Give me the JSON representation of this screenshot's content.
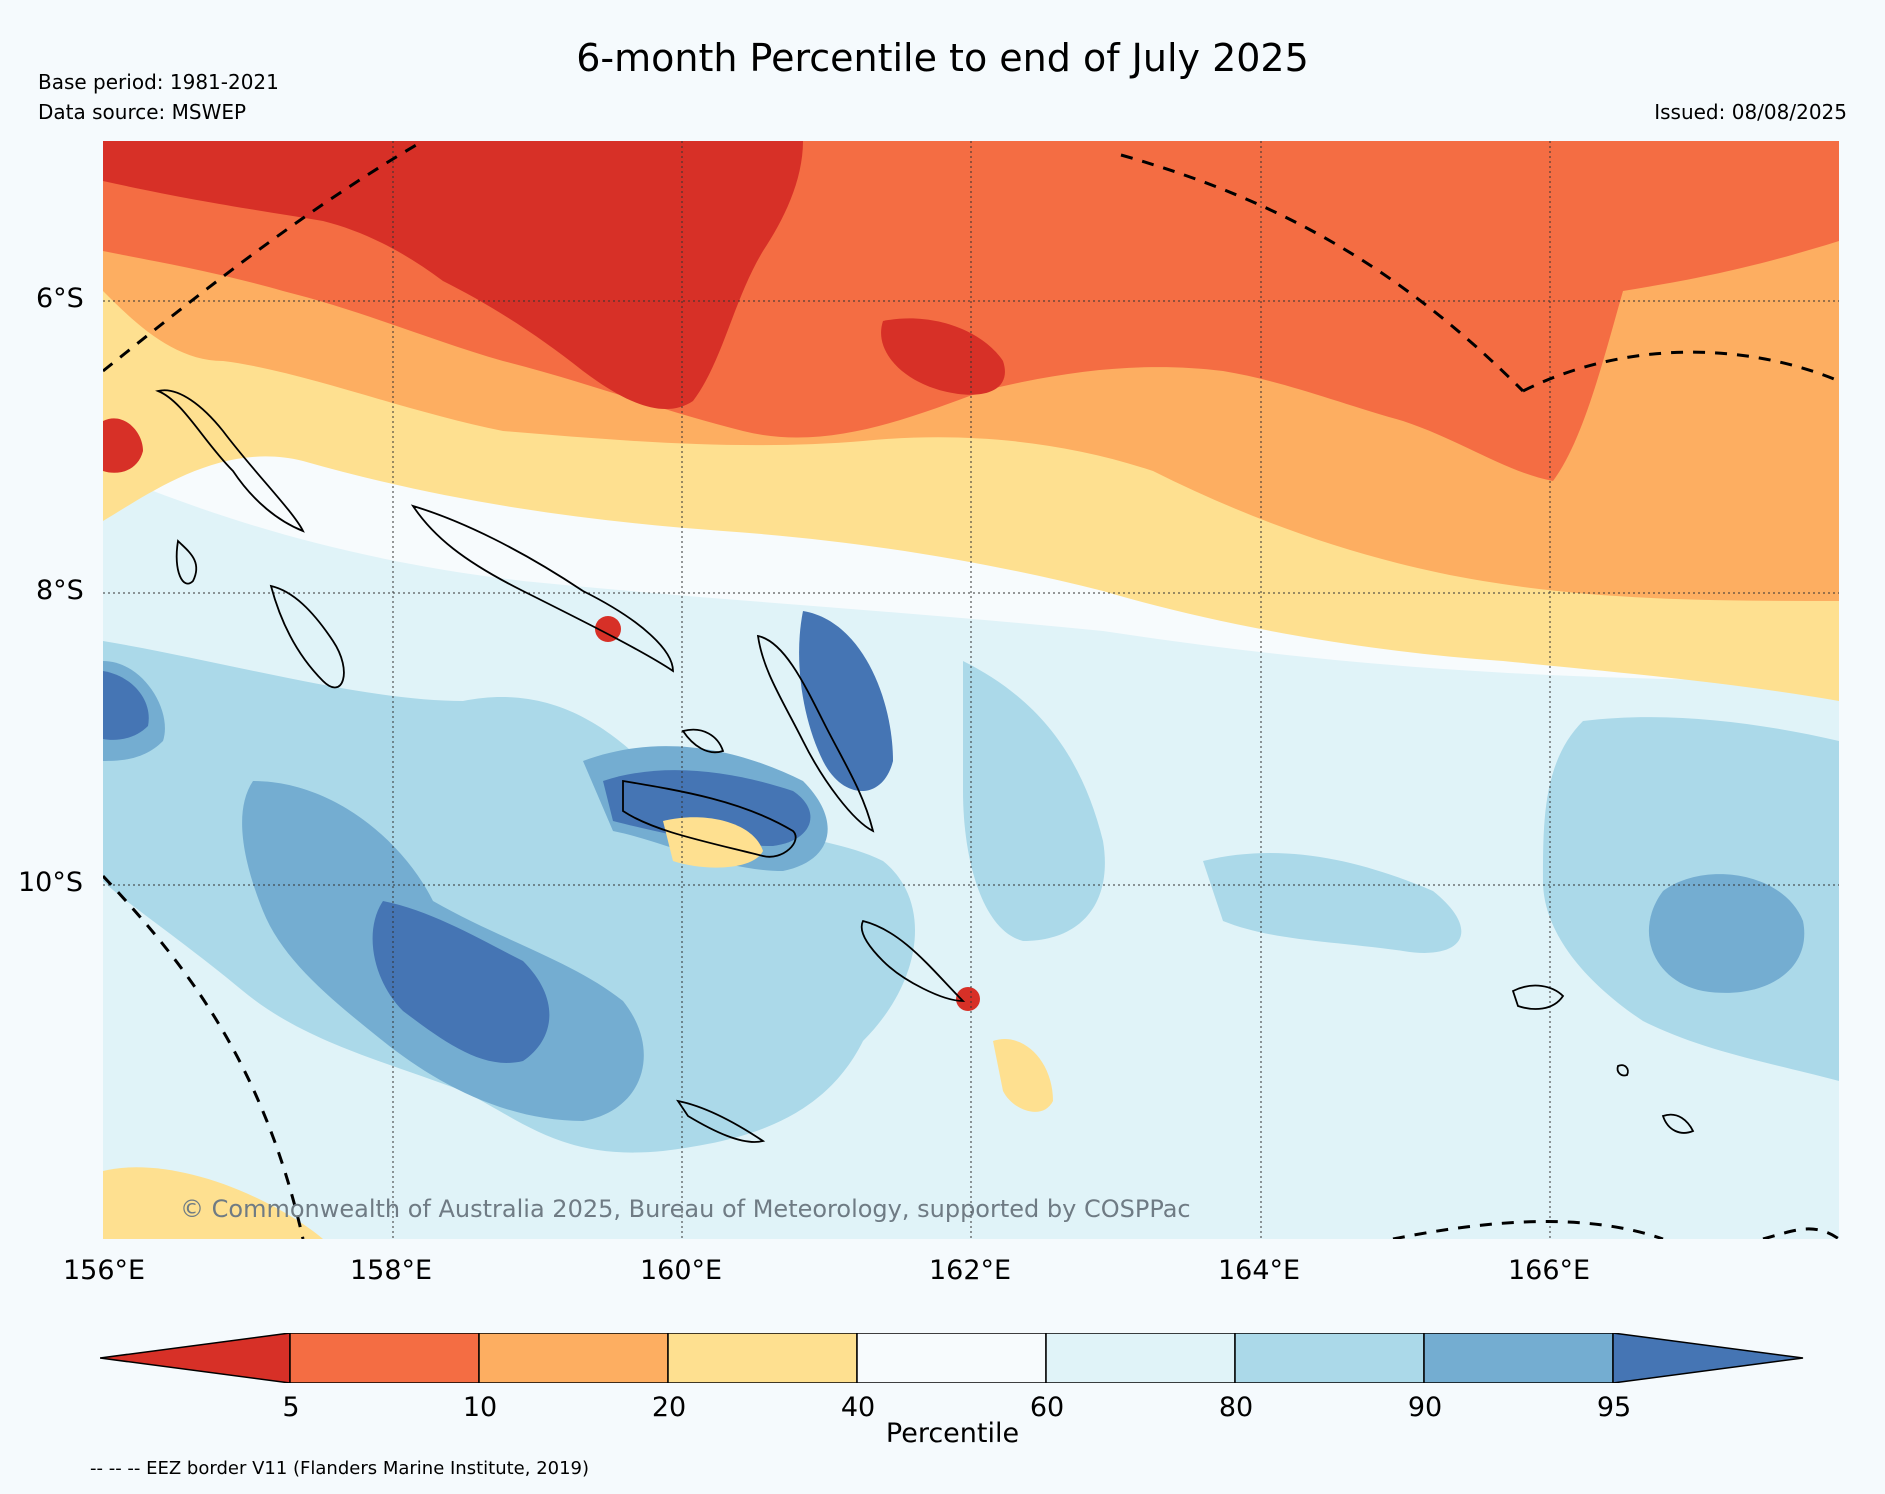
{
  "header": {
    "title": "6-month Percentile to end of July 2025",
    "base_period": "Base period: 1981-2021",
    "data_source": "Data source: MSWEP",
    "issued": "Issued: 08/08/2025"
  },
  "map": {
    "lon_labels": [
      "156°E",
      "158°E",
      "160°E",
      "162°E",
      "164°E",
      "166°E"
    ],
    "lat_labels": [
      "6°S",
      "8°S",
      "10°S"
    ],
    "copyright": "© Commonwealth of Australia 2025, Bureau of Meteorology, supported by COSPPac",
    "colors": {
      "lt5": "#d73027",
      "5_10": "#f46d43",
      "10_20": "#fdae61",
      "20_40": "#fee090",
      "40_60": "#f7fbfd",
      "60_80": "#e0f3f8",
      "80_90": "#abd9e9",
      "90_95": "#74add1",
      "gt95": "#4575b4"
    }
  },
  "colorbar": {
    "ticks": [
      "5",
      "10",
      "20",
      "40",
      "60",
      "80",
      "90",
      "95"
    ],
    "label": "Percentile",
    "colors": [
      "#d73027",
      "#f46d43",
      "#fdae61",
      "#fee090",
      "#f7fbfd",
      "#e0f3f8",
      "#abd9e9",
      "#74add1",
      "#4575b4"
    ]
  },
  "footnote": "-- -- -- EEZ border V11 (Flanders Marine Institute, 2019)"
}
